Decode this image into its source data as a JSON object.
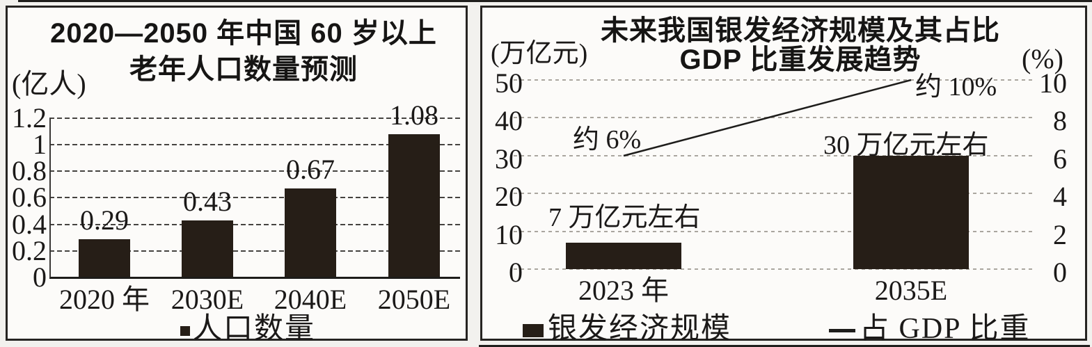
{
  "page": {
    "background_color": "#f2f1ee",
    "bar_fill_color": "#261e17",
    "text_color": "#1b1918"
  },
  "chart_data": [
    {
      "type": "bar",
      "title_lines": [
        "2020—2050 年中国 60 岁以上",
        "老年人口数量预测"
      ],
      "ylabel": "(亿人)",
      "categories": [
        "2020 年",
        "2030E",
        "2040E",
        "2050E"
      ],
      "values": [
        0.29,
        0.43,
        0.67,
        1.08
      ],
      "value_labels": [
        "0.29",
        "0.43",
        "0.67",
        "1.08"
      ],
      "y_ticks": [
        {
          "label": "1.2",
          "value": 1.2
        },
        {
          "label": "1",
          "value": 1.0
        },
        {
          "label": "0.8",
          "value": 0.8
        },
        {
          "label": "0.6",
          "value": 0.6
        },
        {
          "label": "0.4",
          "value": 0.4
        },
        {
          "label": "0.2",
          "value": 0.2
        },
        {
          "label": "0",
          "value": 0
        }
      ],
      "ylim": [
        0,
        1.2
      ],
      "grid": true,
      "grid_style": "dashed-dark",
      "legend_position": "bottom",
      "legend": [
        {
          "marker": "square",
          "label": "人口数量"
        }
      ],
      "bar_color": "#261e17"
    },
    {
      "type": "bar+line",
      "title_lines": [
        "未来我国银发经济规模及其占比",
        "GDP 比重发展趋势"
      ],
      "left_axis_label": "(万亿元)",
      "right_axis_label": "(%)",
      "categories": [
        "2023 年",
        "2035E"
      ],
      "series": [
        {
          "name": "银发经济规模",
          "type": "bar",
          "axis": "left",
          "values": [
            7,
            30
          ],
          "point_labels": [
            "7 万亿元左右",
            "30 万亿元左右"
          ]
        },
        {
          "name": "占 GDP 比重",
          "type": "line",
          "axis": "right",
          "values": [
            6,
            10
          ],
          "point_labels": [
            "约 6%",
            "约 10%"
          ]
        }
      ],
      "left_ticks": [
        {
          "label": "50",
          "value": 50
        },
        {
          "label": "40",
          "value": 40
        },
        {
          "label": "30",
          "value": 30
        },
        {
          "label": "20",
          "value": 20
        },
        {
          "label": "10",
          "value": 10
        },
        {
          "label": "0",
          "value": 0
        }
      ],
      "right_ticks": [
        {
          "label": "10",
          "value": 10
        },
        {
          "label": "8",
          "value": 8
        },
        {
          "label": "6",
          "value": 6
        },
        {
          "label": "4",
          "value": 4
        },
        {
          "label": "2",
          "value": 2
        },
        {
          "label": "0",
          "value": 0
        }
      ],
      "left_ylim": [
        0,
        50
      ],
      "right_ylim": [
        0,
        10
      ],
      "grid": true,
      "grid_style": "dotted-light",
      "legend_position": "bottom",
      "legend": [
        {
          "marker": "square",
          "label": "银发经济规模"
        },
        {
          "marker": "line",
          "label": "占 GDP 比重"
        }
      ],
      "bar_color": "#261e17"
    }
  ]
}
